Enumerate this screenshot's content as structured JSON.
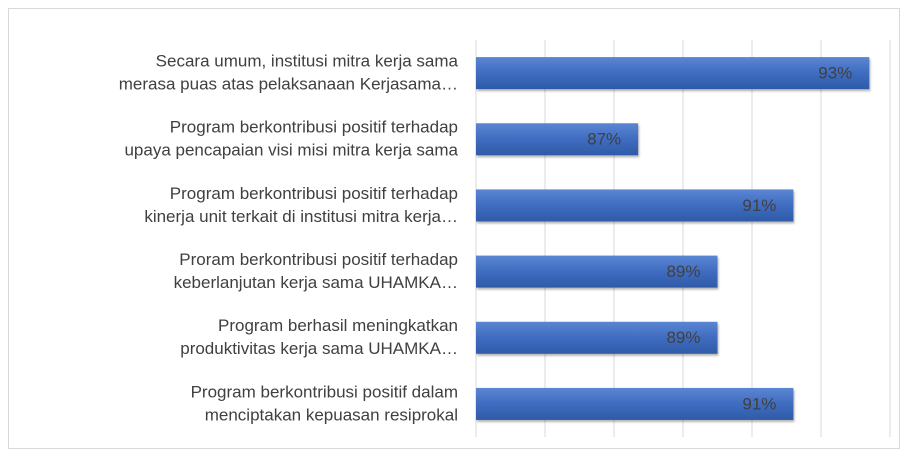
{
  "chart_data": {
    "type": "barh",
    "categories": [
      [
        "Secara umum, institusi mitra kerja sama",
        "merasa puas atas pelaksanaan Kerjasama…"
      ],
      [
        "Program berkontribusi positif terhadap",
        "upaya pencapaian visi misi mitra kerja sama"
      ],
      [
        "Program berkontribusi positif terhadap",
        "kinerja unit terkait di institusi mitra kerja…"
      ],
      [
        "Proram berkontribusi positif terhadap",
        "keberlanjutan kerja sama UHAMKA…"
      ],
      [
        "Program berhasil meningkatkan",
        "produktivitas kerja sama UHAMKA…"
      ],
      [
        "Program berkontribusi positif dalam",
        "menciptakan kepuasan resiprokal"
      ]
    ],
    "values": [
      93.4,
      86.7,
      91.2,
      89.0,
      89.0,
      91.2
    ],
    "value_labels": [
      "93%",
      "87%",
      "91%",
      "89%",
      "89%",
      "91%"
    ],
    "color": "#4472c4",
    "xlim": [
      82,
      94
    ],
    "xticks": [
      82,
      84,
      86,
      88,
      90,
      92,
      94
    ],
    "grid": true,
    "tick_labels": false
  }
}
